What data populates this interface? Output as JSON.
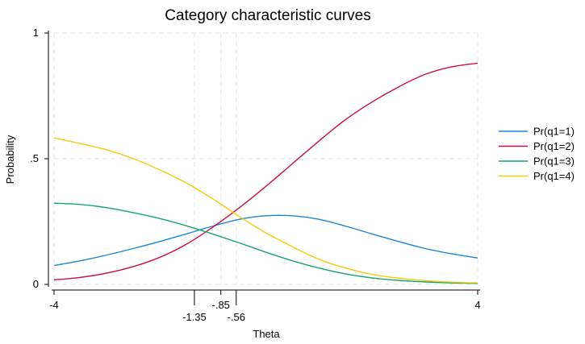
{
  "chart_data": {
    "type": "line",
    "title": "Category characteristic curves",
    "xlabel": "Theta",
    "ylabel": "Probability",
    "xlim": [
      -4,
      4
    ],
    "ylim": [
      0,
      1
    ],
    "x_ticks": [
      {
        "value": -4,
        "label": "-4",
        "row": 1
      },
      {
        "value": -1.35,
        "label": "-1.35",
        "row": 2
      },
      {
        "value": -0.85,
        "label": "-.85",
        "row": 1
      },
      {
        "value": -0.56,
        "label": "-.56",
        "row": 2
      },
      {
        "value": 4,
        "label": "4",
        "row": 1
      }
    ],
    "y_ticks": [
      {
        "value": 0,
        "label": "0"
      },
      {
        "value": 0.5,
        "label": ".5"
      },
      {
        "value": 1,
        "label": "1"
      }
    ],
    "grid": true,
    "vertical_reference_lines": [
      -1.35,
      -0.85,
      -0.56
    ],
    "legend_position": "right",
    "series": [
      {
        "name": "Pr(q1=1)",
        "color": "#1a85d6",
        "x": [
          -4,
          -3.5,
          -3,
          -2.5,
          -2,
          -1.5,
          -1,
          -0.5,
          0,
          0.5,
          1,
          1.5,
          2,
          2.5,
          3,
          3.5,
          4
        ],
        "y": [
          0.075,
          0.094,
          0.117,
          0.143,
          0.171,
          0.201,
          0.232,
          0.259,
          0.273,
          0.273,
          0.259,
          0.232,
          0.201,
          0.171,
          0.143,
          0.122,
          0.105
        ]
      },
      {
        "name": "Pr(q1=2)",
        "color": "#c8103e",
        "x": [
          -4,
          -3.5,
          -3,
          -2.5,
          -2,
          -1.5,
          -1,
          -0.5,
          0,
          0.5,
          1,
          1.5,
          2,
          2.5,
          3,
          3.5,
          4
        ],
        "y": [
          0.018,
          0.028,
          0.045,
          0.071,
          0.108,
          0.16,
          0.228,
          0.305,
          0.39,
          0.48,
          0.57,
          0.655,
          0.725,
          0.785,
          0.835,
          0.865,
          0.88
        ]
      },
      {
        "name": "Pr(q1=3)",
        "color": "#1aa36b",
        "x": [
          -4,
          -3.5,
          -3,
          -2.5,
          -2,
          -1.5,
          -1,
          -0.5,
          0,
          0.5,
          1,
          1.5,
          2,
          2.5,
          3,
          3.5,
          4
        ],
        "y": [
          0.323,
          0.318,
          0.305,
          0.285,
          0.262,
          0.233,
          0.2,
          0.165,
          0.128,
          0.094,
          0.065,
          0.042,
          0.026,
          0.016,
          0.01,
          0.006,
          0.004
        ]
      },
      {
        "name": "Pr(q1=4)",
        "color": "#f2cc0c",
        "x": [
          -4,
          -3.5,
          -3,
          -2.5,
          -2,
          -1.5,
          -1,
          -0.5,
          0,
          0.5,
          1,
          1.5,
          2,
          2.5,
          3,
          3.5,
          4
        ],
        "y": [
          0.583,
          0.56,
          0.535,
          0.5,
          0.455,
          0.403,
          0.34,
          0.27,
          0.205,
          0.15,
          0.1,
          0.065,
          0.04,
          0.025,
          0.015,
          0.009,
          0.006
        ]
      }
    ]
  }
}
